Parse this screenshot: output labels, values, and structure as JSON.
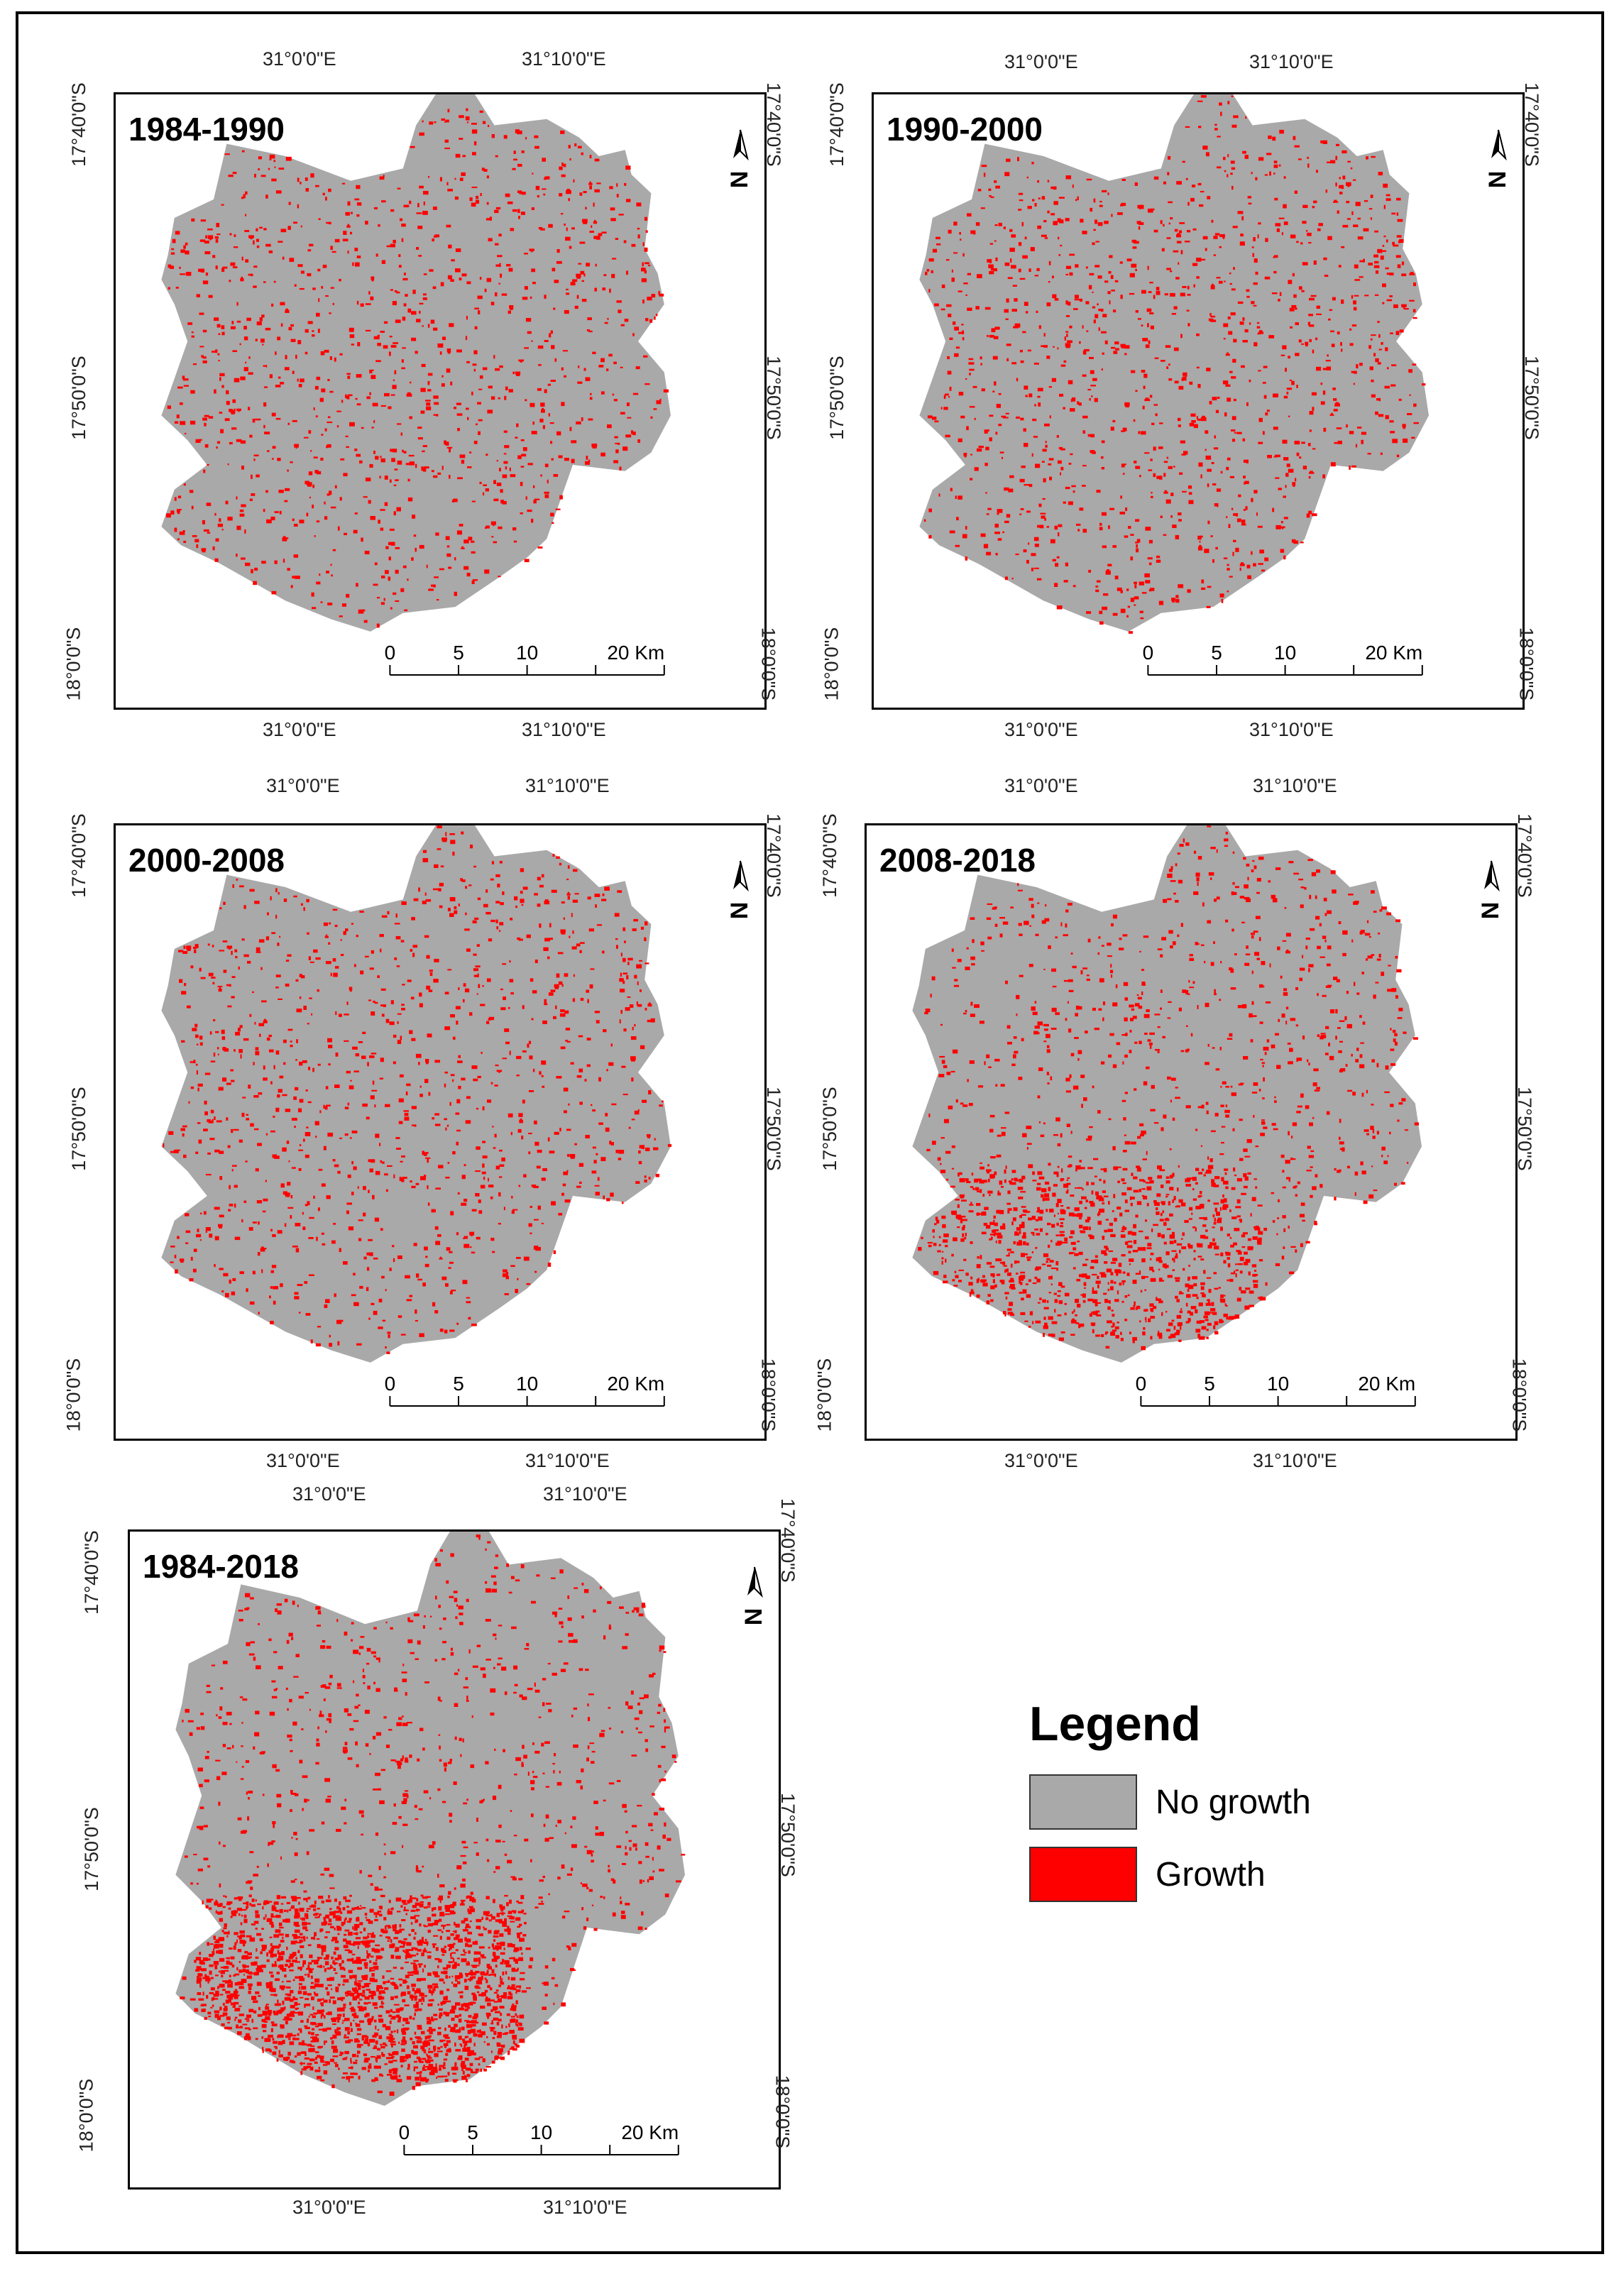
{
  "figure": {
    "colors": {
      "no_growth": "#a9a9a9",
      "growth": "#ff0000",
      "frame": "#000000"
    },
    "axis_labels": {
      "lon_west": "31°0'0\"E",
      "lon_east": "31°10'0\"E",
      "lat_top": "17°40'0\"S",
      "lat_mid": "17°50'0\"S",
      "lat_bottom": "18°0'0\"S"
    },
    "scale_bar": {
      "ticks": [
        "0",
        "5",
        "10",
        "20 Km"
      ]
    },
    "panels": [
      {
        "id": "p1",
        "label": "1984-1990",
        "growth_level": 0.18
      },
      {
        "id": "p2",
        "label": "1990-2000",
        "growth_level": 0.22
      },
      {
        "id": "p3",
        "label": "2000-2008",
        "growth_level": 0.16
      },
      {
        "id": "p4",
        "label": "2008-2018",
        "growth_level": 0.3
      },
      {
        "id": "p5",
        "label": "1984-2018",
        "growth_level": 0.55
      }
    ]
  },
  "legend": {
    "title": "Legend",
    "items": [
      {
        "label": "No growth",
        "color": "#a9a9a9"
      },
      {
        "label": "Growth",
        "color": "#ff0000"
      }
    ]
  }
}
